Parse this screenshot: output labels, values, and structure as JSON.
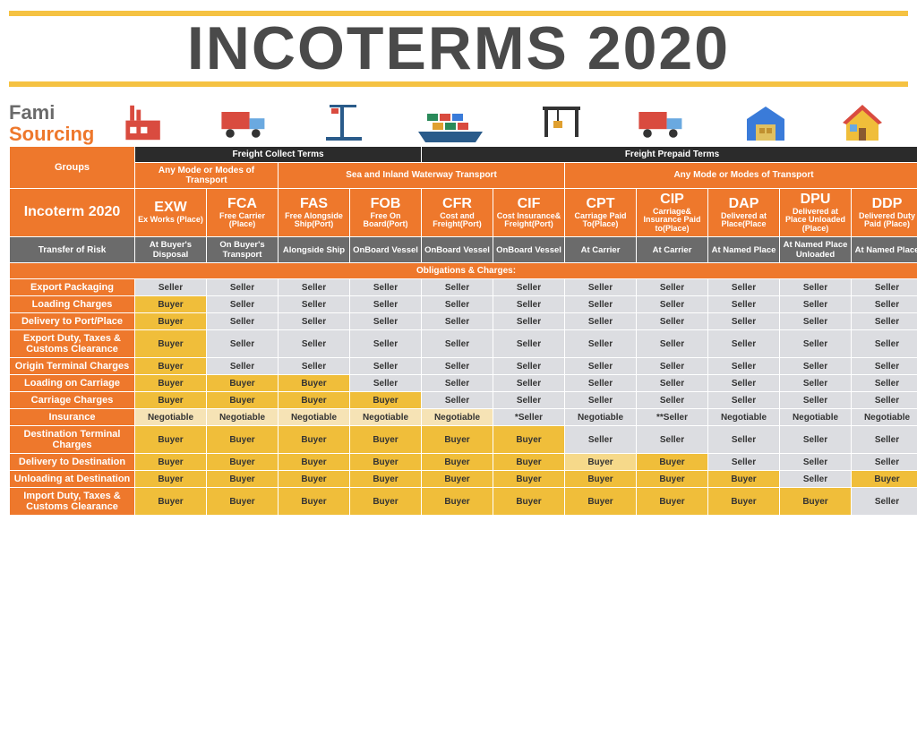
{
  "title": {
    "text": "INCOTERMS 2020",
    "color": "#4a4a4a",
    "font_size": 68
  },
  "brand": {
    "line1": "Fami",
    "line2": "Sourcing",
    "color1": "#6a6a6a",
    "color2": "#ee782c"
  },
  "accent_bar_color": "#f5c242",
  "colors": {
    "orange": "#ee782c",
    "dark": "#2b2b2b",
    "gray": "#6b6b6b",
    "cell_bg": "#dcdde1",
    "buyer": "#f0be3a",
    "buyer_light": "#f6d98a",
    "negotiable": "#f6e3b5",
    "text_dark": "#333333"
  },
  "freight_headers": {
    "collect": "Freight Collect Terms",
    "prepaid": "Freight Prepaid Terms"
  },
  "header_labels": {
    "groups": "Groups",
    "incoterm": "Incoterm 2020",
    "risk": "Transfer of Risk",
    "obligations": "Obligations & Charges:"
  },
  "mode_groups": [
    {
      "label": "Any Mode or Modes of Transport",
      "span": 2
    },
    {
      "label": "Sea and Inland Waterway Transport",
      "span": 4
    },
    {
      "label": "Any Mode or Modes of Transport",
      "span": 5
    }
  ],
  "terms": [
    {
      "code": "EXW",
      "name": "Ex Works (Place)",
      "risk": "At Buyer's Disposal"
    },
    {
      "code": "FCA",
      "name": "Free Carrier (Place)",
      "risk": "On Buyer's Transport"
    },
    {
      "code": "FAS",
      "name": "Free Alongside Ship(Port)",
      "risk": "Alongside Ship"
    },
    {
      "code": "FOB",
      "name": "Free On Board(Port)",
      "risk": "OnBoard Vessel"
    },
    {
      "code": "CFR",
      "name": "Cost and Freight(Port)",
      "risk": "OnBoard Vessel"
    },
    {
      "code": "CIF",
      "name": "Cost Insurance& Freight(Port)",
      "risk": "OnBoard Vessel"
    },
    {
      "code": "CPT",
      "name": "Carriage Paid To(Place)",
      "risk": "At Carrier"
    },
    {
      "code": "CIP",
      "name": "Carriage& Insurance Paid to(Place)",
      "risk": "At Carrier"
    },
    {
      "code": "DAP",
      "name": "Delivered at Place(Place",
      "risk": "At Named Place"
    },
    {
      "code": "DPU",
      "name": "Delivered at Place Unloaded (Place)",
      "risk": "At Named Place Unloaded"
    },
    {
      "code": "DDP",
      "name": "Delivered Duty Paid (Place)",
      "risk": "At Named Place"
    }
  ],
  "rows": [
    {
      "label": "Export Packaging",
      "cells": [
        "Seller",
        "Seller",
        "Seller",
        "Seller",
        "Seller",
        "Seller",
        "Seller",
        "Seller",
        "Seller",
        "Seller",
        "Seller"
      ]
    },
    {
      "label": "Loading Charges",
      "cells": [
        "Buyer",
        "Seller",
        "Seller",
        "Seller",
        "Seller",
        "Seller",
        "Seller",
        "Seller",
        "Seller",
        "Seller",
        "Seller"
      ]
    },
    {
      "label": "Delivery to Port/Place",
      "cells": [
        "Buyer",
        "Seller",
        "Seller",
        "Seller",
        "Seller",
        "Seller",
        "Seller",
        "Seller",
        "Seller",
        "Seller",
        "Seller"
      ]
    },
    {
      "label": "Export Duty, Taxes & Customs Clearance",
      "cells": [
        "Buyer",
        "Seller",
        "Seller",
        "Seller",
        "Seller",
        "Seller",
        "Seller",
        "Seller",
        "Seller",
        "Seller",
        "Seller"
      ]
    },
    {
      "label": "Origin Terminal Charges",
      "cells": [
        "Buyer",
        "Seller",
        "Seller",
        "Seller",
        "Seller",
        "Seller",
        "Seller",
        "Seller",
        "Seller",
        "Seller",
        "Seller"
      ]
    },
    {
      "label": "Loading on Carriage",
      "cells": [
        "Buyer",
        "Buyer",
        "Buyer",
        "Seller",
        "Seller",
        "Seller",
        "Seller",
        "Seller",
        "Seller",
        "Seller",
        "Seller"
      ]
    },
    {
      "label": "Carriage Charges",
      "cells": [
        "Buyer",
        "Buyer",
        "Buyer",
        "Buyer",
        "Seller",
        "Seller",
        "Seller",
        "Seller",
        "Seller",
        "Seller",
        "Seller"
      ]
    },
    {
      "label": "Insurance",
      "cells": [
        "Negotiable",
        "Negotiable",
        "Negotiable",
        "Negotiable",
        "Negotiable",
        "*Seller",
        "Negotiable",
        "**Seller",
        "Negotiable",
        "Negotiable",
        "Negotiable"
      ]
    },
    {
      "label": "Destination Terminal Charges",
      "cells": [
        "Buyer",
        "Buyer",
        "Buyer",
        "Buyer",
        "Buyer",
        "Buyer",
        "Seller",
        "Seller",
        "Seller",
        "Seller",
        "Seller"
      ]
    },
    {
      "label": "Delivery to Destination",
      "cells": [
        "Buyer",
        "Buyer",
        "Buyer",
        "Buyer",
        "Buyer",
        "Buyer",
        "Buyer",
        "Buyer",
        "Seller",
        "Seller",
        "Seller"
      ]
    },
    {
      "label": "Unloading at Destination",
      "cells": [
        "Buyer",
        "Buyer",
        "Buyer",
        "Buyer",
        "Buyer",
        "Buyer",
        "Buyer",
        "Buyer",
        "Buyer",
        "Seller",
        "Buyer"
      ]
    },
    {
      "label": "Import Duty,  Taxes & Customs Clearance",
      "cells": [
        "Buyer",
        "Buyer",
        "Buyer",
        "Buyer",
        "Buyer",
        "Buyer",
        "Buyer",
        "Buyer",
        "Buyer",
        "Buyer",
        "Seller"
      ]
    }
  ],
  "cell_style_overrides": {
    "1": {
      "0": "buyer"
    },
    "2": {
      "0": "buyer"
    },
    "3": {
      "0": "buyer"
    },
    "4": {
      "0": "buyer"
    },
    "5": {
      "0": "buyer",
      "1": "buyer",
      "2": "buyer"
    },
    "6": {
      "0": "buyer",
      "1": "buyer",
      "2": "buyer",
      "3": "buyer"
    },
    "7": {
      "0": "neg",
      "1": "neg",
      "2": "neg",
      "3": "neg",
      "4": "neg"
    },
    "8": {
      "0": "buyer",
      "1": "buyer",
      "2": "buyer",
      "3": "buyer",
      "4": "buyer",
      "5": "buyer"
    },
    "9": {
      "0": "buyer",
      "1": "buyer",
      "2": "buyer",
      "3": "buyer",
      "4": "buyer",
      "5": "buyer",
      "6": "buyer-light",
      "7": "buyer"
    },
    "10": {
      "0": "buyer",
      "1": "buyer",
      "2": "buyer",
      "3": "buyer",
      "4": "buyer",
      "5": "buyer",
      "6": "buyer",
      "7": "buyer",
      "8": "buyer",
      "10": "buyer"
    },
    "11": {
      "0": "buyer",
      "1": "buyer",
      "2": "buyer",
      "3": "buyer",
      "4": "buyer",
      "5": "buyer",
      "6": "buyer",
      "7": "buyer",
      "8": "buyer",
      "9": "buyer"
    }
  },
  "icons": [
    "factory-icon",
    "truck-icon",
    "port-crane-icon",
    "container-ship-icon",
    "gantry-crane-icon",
    "truck2-icon",
    "warehouse-icon",
    "house-icon"
  ]
}
